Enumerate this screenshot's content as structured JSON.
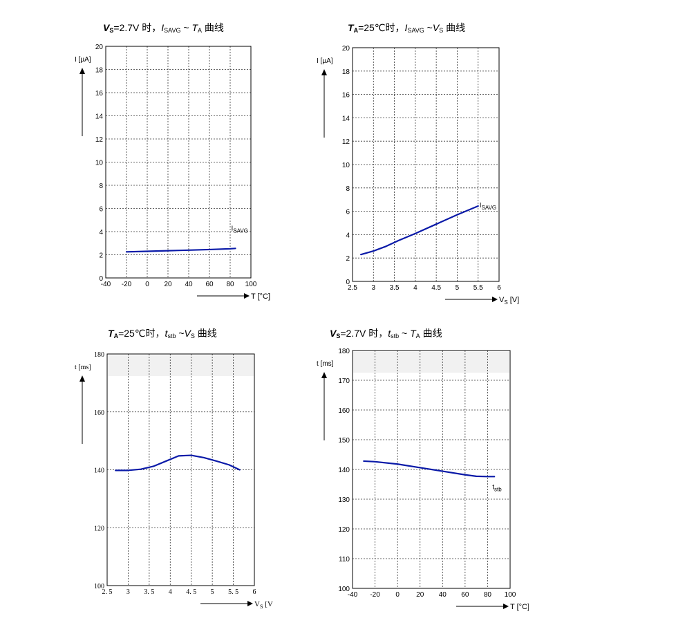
{
  "chart_data": [
    {
      "id": "c1",
      "type": "line",
      "title": {
        "v": "V",
        "vsub": "S",
        "eq": "=2.7V 时，",
        "i": "I",
        "isub": "SAVG",
        "tilde": " ~ ",
        "t": "T",
        "tsub": "A",
        "tail": " 曲线"
      },
      "ylabel": "I [µA]",
      "xlabel": "T [°C]",
      "xlim": [
        -40,
        100
      ],
      "ylim": [
        0,
        20
      ],
      "xticks": [
        "-40",
        "-20",
        "0",
        "20",
        "40",
        "60",
        "80",
        "100"
      ],
      "yticks": [
        "0",
        "2",
        "4",
        "6",
        "8",
        "10",
        "12",
        "14",
        "16",
        "18",
        "20"
      ],
      "grid": true,
      "series": [
        {
          "name": "I",
          "name_sub": "SAVG",
          "color": "#0a1aa8",
          "x": [
            -20,
            0,
            20,
            40,
            60,
            80,
            85
          ],
          "y": [
            2.25,
            2.3,
            2.35,
            2.4,
            2.45,
            2.52,
            2.55
          ]
        }
      ]
    },
    {
      "id": "c2",
      "type": "line",
      "title": {
        "v": "T",
        "vsub": "A",
        "eq": "=25℃时，",
        "i": "I",
        "isub": "SAVG",
        "tilde": " ~",
        "t": "V",
        "tsub": "S",
        "tail": " 曲线"
      },
      "ylabel": "I [µA]",
      "xlabel": "V",
      "xlabel_sub": "S",
      "xlabel_unit": " [V]",
      "xlim": [
        2.5,
        6
      ],
      "ylim": [
        0,
        20
      ],
      "xticks": [
        "2.5",
        "3",
        "3.5",
        "4",
        "4.5",
        "5",
        "5.5",
        "6"
      ],
      "yticks": [
        "0",
        "2",
        "4",
        "6",
        "8",
        "10",
        "12",
        "14",
        "16",
        "18",
        "20"
      ],
      "grid": true,
      "series": [
        {
          "name": "I",
          "name_sub": "SAVG",
          "color": "#0a1aa8",
          "x": [
            2.7,
            3.0,
            3.3,
            3.6,
            4.0,
            4.5,
            5.0,
            5.5
          ],
          "y": [
            2.3,
            2.6,
            3.0,
            3.5,
            4.1,
            4.9,
            5.7,
            6.45
          ]
        }
      ]
    },
    {
      "id": "c3",
      "type": "line",
      "title": {
        "v": "T",
        "vsub": "A",
        "eq": "=25℃时，",
        "i": "t",
        "isub": "stb",
        "tilde": " ~",
        "t": "V",
        "tsub": "S",
        "tail": "  曲线"
      },
      "ylabel": "t [ms]",
      "xlabel": "V",
      "xlabel_sub": "S",
      "xlabel_unit": " [V]",
      "xlim": [
        2.5,
        6
      ],
      "ylim": [
        100,
        180
      ],
      "xticks": [
        "2. 5",
        "3",
        "3. 5",
        "4",
        "4. 5",
        "5",
        "5. 5",
        "6"
      ],
      "yticks": [
        "100",
        "120",
        "140",
        "160",
        "180"
      ],
      "grid": true,
      "series": [
        {
          "name": "",
          "color": "#0a1aa8",
          "x": [
            2.7,
            3.0,
            3.3,
            3.6,
            3.9,
            4.2,
            4.5,
            4.8,
            5.1,
            5.4,
            5.65
          ],
          "y": [
            139.8,
            139.8,
            140.2,
            141.2,
            143.0,
            144.8,
            145.0,
            144.2,
            143.0,
            141.7,
            140.0
          ]
        }
      ]
    },
    {
      "id": "c4",
      "type": "line",
      "title": {
        "v": "V",
        "vsub": "S",
        "eq": "=2.7V 时，",
        "i": "t",
        "isub": "stb",
        "tilde": " ~ ",
        "t": "T",
        "tsub": "A",
        "tail": " 曲线"
      },
      "ylabel": "t [ms]",
      "xlabel": "T [°C]",
      "xlim": [
        -40,
        100
      ],
      "ylim": [
        100,
        180
      ],
      "xticks": [
        "-40",
        "-20",
        "0",
        "20",
        "40",
        "60",
        "80",
        "100"
      ],
      "yticks": [
        "100",
        "110",
        "120",
        "130",
        "140",
        "150",
        "160",
        "170",
        "180"
      ],
      "grid": true,
      "series": [
        {
          "name": "t",
          "name_sub": "stb",
          "color": "#0a1aa8",
          "x": [
            -30,
            -20,
            0,
            20,
            40,
            60,
            70,
            80,
            86
          ],
          "y": [
            142.8,
            142.6,
            141.8,
            140.6,
            139.4,
            138.2,
            137.7,
            137.6,
            137.6
          ]
        }
      ]
    }
  ]
}
